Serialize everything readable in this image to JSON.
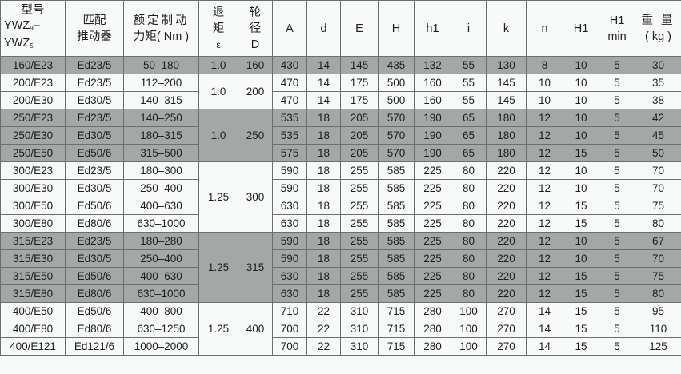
{
  "header": {
    "model_line1": "型号",
    "model_line2": "YWZ",
    "model_sub2": "9",
    "model_dash": "–",
    "model_line3": "YWZ",
    "model_sub3": "5",
    "thruster_line1": "匹配",
    "thruster_line2": "推动器",
    "torque_line1": "额定制动",
    "torque_line2": "力矩( Nm )",
    "eps_line1": "退",
    "eps_line2": "矩",
    "eps_line3": "ε",
    "D_line1": "轮",
    "D_line2": "径",
    "D_line3": "D",
    "A": "A",
    "d": "d",
    "E": "E",
    "H": "H",
    "h1": "h1",
    "i": "i",
    "k": "k",
    "n": "n",
    "H1": "H1",
    "H1min_line1": "H1",
    "H1min_line2": "min",
    "weight_line1": "重 量",
    "weight_line2": "( kg )"
  },
  "colors": {
    "shade": "#a3a8a6",
    "border": "#6d6f6e",
    "background": "#f7faf8"
  },
  "groups": [
    {
      "eps": "1.0",
      "D": "160",
      "shaded": true,
      "rows": [
        [
          "160/E23",
          "Ed23/5",
          "50–180",
          "430",
          "14",
          "145",
          "435",
          "132",
          "55",
          "130",
          "8",
          "10",
          "5",
          "30"
        ]
      ]
    },
    {
      "eps": "1.0",
      "D": "200",
      "shaded": false,
      "rows": [
        [
          "200/E23",
          "Ed23/5",
          "112–200",
          "470",
          "14",
          "175",
          "500",
          "160",
          "55",
          "145",
          "10",
          "10",
          "5",
          "35"
        ],
        [
          "200/E30",
          "Ed30/5",
          "140–315",
          "470",
          "14",
          "175",
          "500",
          "160",
          "55",
          "145",
          "10",
          "10",
          "5",
          "38"
        ]
      ]
    },
    {
      "eps": "1.0",
      "D": "250",
      "shaded": true,
      "rows": [
        [
          "250/E23",
          "Ed23/5",
          "140–250",
          "535",
          "18",
          "205",
          "570",
          "190",
          "65",
          "180",
          "12",
          "10",
          "5",
          "42"
        ],
        [
          "250/E30",
          "Ed30/5",
          "180–315",
          "535",
          "18",
          "205",
          "570",
          "190",
          "65",
          "180",
          "12",
          "10",
          "5",
          "45"
        ],
        [
          "250/E50",
          "Ed50/6",
          "315–500",
          "575",
          "18",
          "205",
          "570",
          "190",
          "65",
          "180",
          "12",
          "15",
          "5",
          "50"
        ]
      ]
    },
    {
      "eps": "1.25",
      "D": "300",
      "shaded": false,
      "rows": [
        [
          "300/E23",
          "Ed23/5",
          "180–300",
          "590",
          "18",
          "255",
          "585",
          "225",
          "80",
          "220",
          "12",
          "10",
          "5",
          "70"
        ],
        [
          "300/E30",
          "Ed30/5",
          "250–400",
          "590",
          "18",
          "255",
          "585",
          "225",
          "80",
          "220",
          "12",
          "10",
          "5",
          "70"
        ],
        [
          "300/E50",
          "Ed50/6",
          "400–630",
          "630",
          "18",
          "255",
          "585",
          "225",
          "80",
          "220",
          "12",
          "15",
          "5",
          "75"
        ],
        [
          "300/E80",
          "Ed80/6",
          "630–1000",
          "630",
          "18",
          "255",
          "585",
          "225",
          "80",
          "220",
          "12",
          "15",
          "5",
          "80"
        ]
      ]
    },
    {
      "eps": "1.25",
      "D": "315",
      "shaded": true,
      "rows": [
        [
          "315/E23",
          "Ed23/5",
          "180–280",
          "590",
          "18",
          "255",
          "585",
          "225",
          "80",
          "220",
          "12",
          "10",
          "5",
          "67"
        ],
        [
          "315/E30",
          "Ed30/5",
          "250–400",
          "590",
          "18",
          "255",
          "585",
          "225",
          "80",
          "220",
          "12",
          "10",
          "5",
          "70"
        ],
        [
          "315/E50",
          "Ed50/6",
          "400–630",
          "630",
          "18",
          "255",
          "585",
          "225",
          "80",
          "220",
          "12",
          "15",
          "5",
          "75"
        ],
        [
          "315/E80",
          "Ed80/6",
          "630–1000",
          "630",
          "18",
          "255",
          "585",
          "225",
          "80",
          "220",
          "12",
          "15",
          "5",
          "80"
        ]
      ]
    },
    {
      "eps": "1.25",
      "D": "400",
      "shaded": false,
      "rows": [
        [
          "400/E50",
          "Ed50/6",
          "400–800",
          "710",
          "22",
          "310",
          "715",
          "280",
          "100",
          "270",
          "14",
          "15",
          "5",
          "95"
        ],
        [
          "400/E80",
          "Ed80/6",
          "630–1250",
          "700",
          "22",
          "310",
          "715",
          "280",
          "100",
          "270",
          "14",
          "15",
          "5",
          "110"
        ],
        [
          "400/E121",
          "Ed121/6",
          "1000–2000",
          "700",
          "22",
          "310",
          "715",
          "280",
          "100",
          "270",
          "14",
          "15",
          "5",
          "125"
        ]
      ]
    }
  ]
}
